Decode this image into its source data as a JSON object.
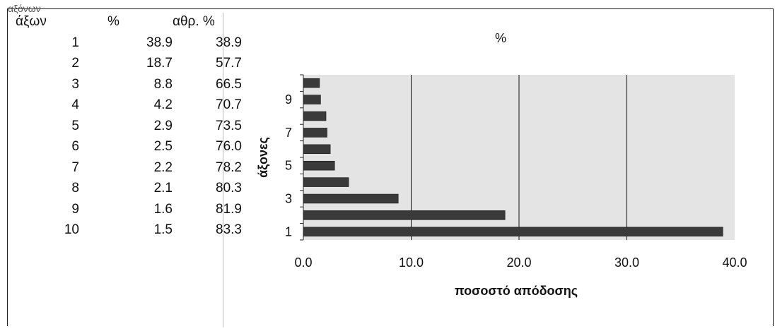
{
  "header_fragment": "αξόνων",
  "table": {
    "columns": [
      "άξων",
      "%",
      "αθρ. %"
    ],
    "rows": [
      [
        "1",
        "38.9",
        "38.9"
      ],
      [
        "2",
        "18.7",
        "57.7"
      ],
      [
        "3",
        "8.8",
        "66.5"
      ],
      [
        "4",
        "4.2",
        "70.7"
      ],
      [
        "5",
        "2.9",
        "73.5"
      ],
      [
        "6",
        "2.5",
        "76.0"
      ],
      [
        "7",
        "2.2",
        "78.2"
      ],
      [
        "8",
        "2.1",
        "80.3"
      ],
      [
        "9",
        "1.6",
        "81.9"
      ],
      [
        "10",
        "1.5",
        "83.3"
      ]
    ]
  },
  "chart_data": {
    "type": "bar",
    "orientation": "horizontal",
    "title": "%",
    "xlabel": "ποσοστό απόδοσης",
    "ylabel": "άξονες",
    "categories": [
      "1",
      "2",
      "3",
      "4",
      "5",
      "6",
      "7",
      "8",
      "9",
      "10"
    ],
    "y_tick_labels": [
      "1",
      "3",
      "5",
      "7",
      "9"
    ],
    "values": [
      38.9,
      18.7,
      8.8,
      4.2,
      2.9,
      2.5,
      2.2,
      2.1,
      1.6,
      1.5
    ],
    "x_tick_labels": [
      "0.0",
      "10.0",
      "20.0",
      "30.0",
      "40.0"
    ],
    "xlim": [
      0,
      40
    ],
    "grid": "vertical major gridlines",
    "legend": "none",
    "colors": {
      "bar": "#3a3a3a",
      "plot_bg": "#e4e4e4",
      "grid": "#111111"
    }
  }
}
